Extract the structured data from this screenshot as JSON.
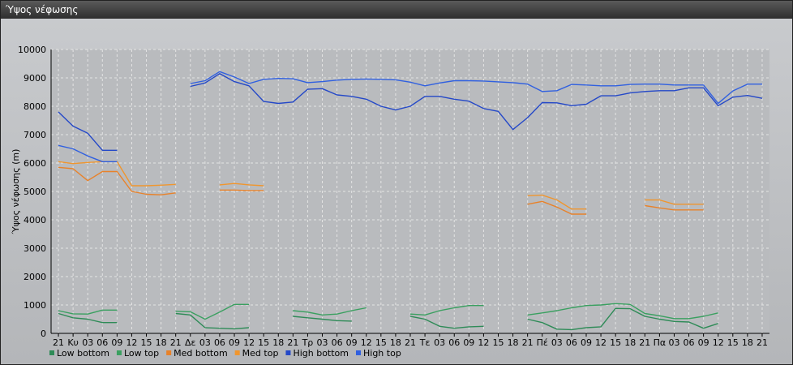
{
  "window": {
    "title": "Ύψος νέφωσης"
  },
  "chart_data": {
    "type": "line",
    "title": "",
    "ylabel": "Ύψος νέφωσης (m)",
    "ylim": [
      0,
      10000
    ],
    "yticks": [
      0,
      1000,
      2000,
      3000,
      4000,
      5000,
      6000,
      7000,
      8000,
      9000,
      10000
    ],
    "grid": true,
    "legend_position": "bottom",
    "x_tick_labels": [
      "21",
      "Κυ",
      "03",
      "06",
      "09",
      "12",
      "15",
      "18",
      "21",
      "Δε",
      "03",
      "06",
      "09",
      "12",
      "15",
      "18",
      "21",
      "Τρ",
      "03",
      "06",
      "09",
      "12",
      "15",
      "18",
      "21",
      "Τε",
      "03",
      "06",
      "09",
      "12",
      "15",
      "18",
      "21",
      "Πέ",
      "03",
      "06",
      "09",
      "12",
      "15",
      "18",
      "21",
      "Πα",
      "03",
      "06",
      "09",
      "12",
      "15",
      "18",
      "21"
    ],
    "series": [
      {
        "name": "Low bottom",
        "color": "#2e8b57",
        "values": [
          700,
          550,
          500,
          380,
          380,
          null,
          null,
          null,
          700,
          650,
          200,
          180,
          160,
          200,
          null,
          null,
          600,
          550,
          500,
          450,
          430,
          null,
          null,
          null,
          600,
          500,
          250,
          180,
          230,
          250,
          null,
          null,
          500,
          380,
          150,
          130,
          200,
          230,
          880,
          870,
          600,
          500,
          420,
          400,
          180,
          350,
          null,
          null,
          null
        ]
      },
      {
        "name": "Low top",
        "color": "#3aa060",
        "values": [
          800,
          690,
          680,
          820,
          820,
          null,
          null,
          null,
          780,
          760,
          500,
          750,
          1020,
          1020,
          null,
          null,
          800,
          750,
          650,
          680,
          800,
          900,
          null,
          null,
          680,
          650,
          800,
          900,
          980,
          980,
          null,
          null,
          650,
          720,
          800,
          900,
          980,
          1000,
          1050,
          1020,
          700,
          620,
          520,
          520,
          600,
          720,
          null,
          null,
          null
        ]
      },
      {
        "name": "Med bottom",
        "color": "#e8822a",
        "values": [
          5850,
          5800,
          5380,
          5700,
          5700,
          5000,
          4900,
          4880,
          4950,
          null,
          null,
          5050,
          5050,
          5030,
          5030,
          null,
          null,
          null,
          null,
          null,
          null,
          null,
          null,
          null,
          null,
          null,
          null,
          null,
          null,
          null,
          null,
          null,
          4550,
          4650,
          4450,
          4200,
          4200,
          null,
          null,
          null,
          4500,
          4420,
          4350,
          4350,
          4350,
          null,
          null,
          null,
          null
        ]
      },
      {
        "name": "Med top",
        "color": "#f0962e",
        "values": [
          6050,
          5980,
          6020,
          6050,
          6050,
          5200,
          5200,
          5220,
          5250,
          null,
          null,
          5230,
          5280,
          5230,
          5200,
          null,
          null,
          null,
          null,
          null,
          null,
          null,
          null,
          null,
          null,
          null,
          null,
          null,
          null,
          null,
          null,
          null,
          4850,
          4870,
          4700,
          4380,
          4380,
          null,
          null,
          null,
          4700,
          4700,
          4550,
          4550,
          4550,
          null,
          null,
          null,
          null
        ]
      },
      {
        "name": "High bottom",
        "color": "#2448c8",
        "values": [
          7800,
          7300,
          7050,
          6450,
          6450,
          null,
          null,
          null,
          null,
          8700,
          8820,
          9150,
          8870,
          8720,
          8170,
          8100,
          8150,
          8600,
          8620,
          8400,
          8350,
          8250,
          8000,
          7870,
          8000,
          8350,
          8350,
          8250,
          8180,
          7920,
          7820,
          7180,
          7600,
          8130,
          8120,
          8020,
          8070,
          8370,
          8370,
          8470,
          8520,
          8550,
          8550,
          8650,
          8650,
          8020,
          8320,
          8380,
          8280
        ]
      },
      {
        "name": "High top",
        "color": "#3060e0",
        "values": [
          6620,
          6500,
          6250,
          6050,
          6050,
          null,
          null,
          null,
          null,
          8800,
          8900,
          9220,
          9030,
          8800,
          8950,
          8980,
          8970,
          8830,
          8870,
          8920,
          8950,
          8960,
          8950,
          8930,
          8850,
          8720,
          8820,
          8900,
          8900,
          8890,
          8860,
          8830,
          8780,
          8520,
          8550,
          8770,
          8750,
          8720,
          8720,
          8770,
          8780,
          8780,
          8750,
          8750,
          8750,
          8100,
          8540,
          8780,
          8780
        ]
      }
    ]
  }
}
